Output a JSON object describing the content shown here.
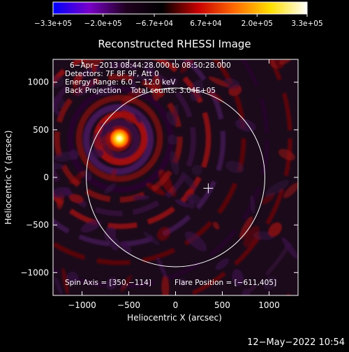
{
  "chart_data": {
    "type": "heatmap",
    "title": "Reconstructed RHESSI Image",
    "xlabel": "Heliocentric X (arcsec)",
    "ylabel": "Heliocentric Y (arcsec)",
    "xlim": [
      -1310,
      1310
    ],
    "ylim": [
      -1240,
      1240
    ],
    "x_ticks": [
      -1000,
      -500,
      0,
      500,
      1000
    ],
    "x_tick_labels": [
      "−1000",
      "−500",
      "0",
      "500",
      "1000"
    ],
    "y_ticks": [
      -1000,
      -500,
      0,
      500,
      1000
    ],
    "y_tick_labels": [
      "−1000",
      "−500",
      "0",
      "500",
      "1000"
    ],
    "colorbar": {
      "range": [
        -330000,
        330000
      ],
      "tick_values": [
        -330000,
        -200000,
        -67000,
        67000,
        200000,
        330000
      ],
      "tick_labels": [
        "−3.3e+05",
        "−2.0e+05",
        "−6.7e+04",
        "6.7e+04",
        "2.0e+05",
        "3.3e+05"
      ],
      "colors": [
        "#0000ff",
        "#7a00c8",
        "#200020",
        "#000000",
        "#c80000",
        "#ff6a00",
        "#ffe000",
        "#ffffff"
      ]
    },
    "annotations": [
      "6−Apr−2013 08:44:28.000 to 08:50:28.000",
      "Detectors: 7F 8F 9F, Att 0",
      "Energy Range: 6.0 − 12.0 keV",
      "Back Projection    Total counts: 3.04E+05"
    ],
    "spin_axis_label": "Spin Axis = [350,−114]",
    "spin_axis": [
      350,
      -114
    ],
    "flare_position_label": "Flare Position = [−611,405]",
    "flare_position": [
      -611,
      405
    ],
    "solar_limb_radius_arcsec": 955,
    "source_peak": {
      "x": -600,
      "y": 410,
      "value": 330000
    },
    "grid": false
  },
  "timestamp": "12−May−2022 10:54"
}
